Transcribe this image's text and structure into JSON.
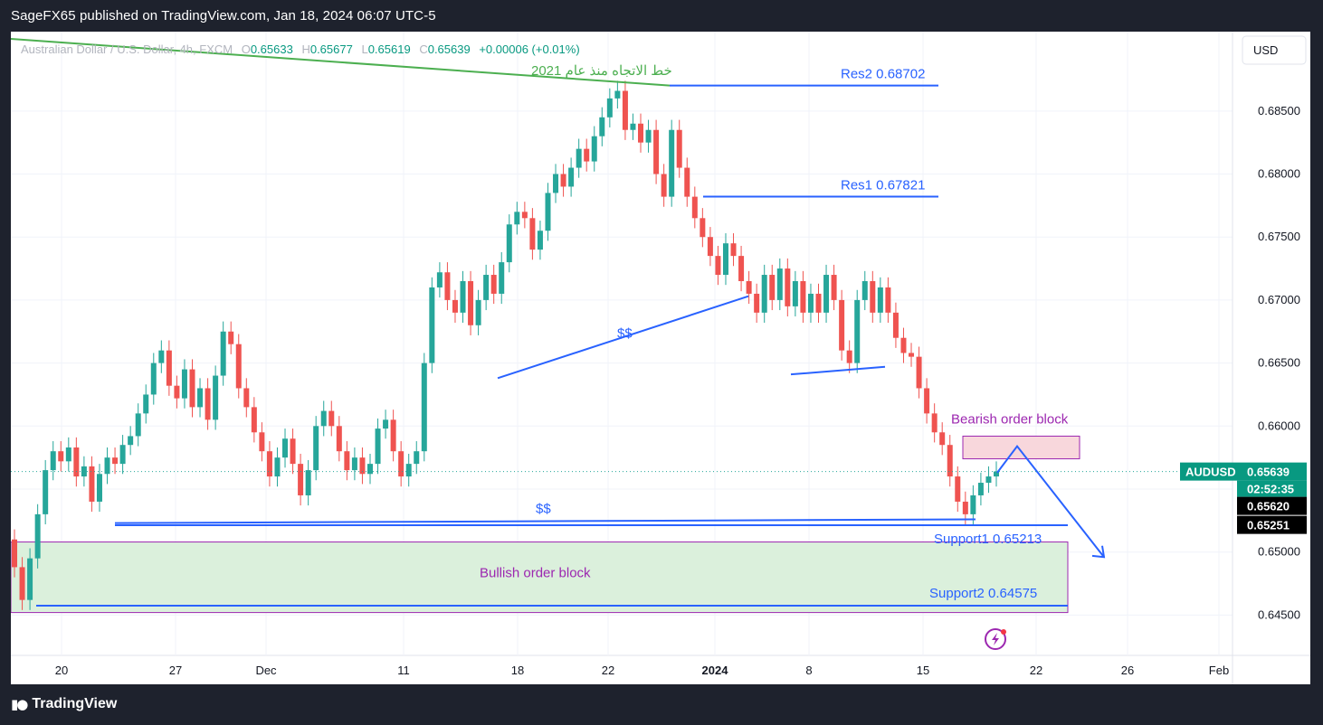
{
  "header": {
    "publisher_line": "SageFX65 published on TradingView.com, Jan 18, 2024 06:07 UTC-5"
  },
  "footer": {
    "brand": "TradingView",
    "logo_icon": "tradingview-logo-icon"
  },
  "colors": {
    "up": "#26a69a",
    "down": "#ef5350",
    "level_line": "#2962ff",
    "trendline": "#4caf50",
    "annotation_purple": "#9c27b0",
    "bearish_fill": "#f8d7dc",
    "bullish_fill": "#dbf0dc",
    "price_tag": "#089981"
  },
  "chart_data": {
    "type": "candlestick",
    "symbol_legend": {
      "name": "Australian Dollar / U.S. Dollar, 4h, FXCM",
      "open_label": "O",
      "open": "0.65633",
      "high_label": "H",
      "high": "0.65677",
      "low_label": "L",
      "low": "0.65619",
      "close_label": "C",
      "close": "0.65639",
      "change": "+0.00006 (+0.01%)"
    },
    "currency_button": "USD",
    "y_ticks": [
      "0.68500",
      "0.68000",
      "0.67500",
      "0.67000",
      "0.66500",
      "0.66000",
      "0.65500",
      "0.65000",
      "0.64500"
    ],
    "y_tick_values": [
      0.685,
      0.68,
      0.675,
      0.67,
      0.665,
      0.66,
      0.655,
      0.65,
      0.645
    ],
    "ylim": [
      0.6418,
      0.6913
    ],
    "x_ticks": [
      "20",
      "27",
      "Dec",
      "11",
      "18",
      "22",
      "2024",
      "8",
      "15",
      "22",
      "26",
      "Feb"
    ],
    "price_tags": {
      "symbol": "AUDUSD",
      "price": "0.65639",
      "countdown": "02:52:35",
      "tag2": "0.65620",
      "tag3": "0.65251"
    },
    "annotations": {
      "trendline_label": "خط الاتجاه منذ عام 2021",
      "res2": "Res2  0.68702",
      "res2_value": 0.68702,
      "res1": "Res1  0.67821",
      "res1_value": 0.67821,
      "support1": "Support1  0.65213",
      "support1_value": 0.65213,
      "support2": "Support2  0.64575",
      "support2_value": 0.64575,
      "liquidity_1": "$$",
      "liquidity_2": "$$",
      "bearish_block": "Bearish order block",
      "bullish_block": "Bullish order block"
    },
    "series_path": [
      [
        0.651,
        0.6488
      ],
      [
        0.6488,
        0.6462
      ],
      [
        0.6462,
        0.6495
      ],
      [
        0.6495,
        0.653
      ],
      [
        0.653,
        0.6565
      ],
      [
        0.6565,
        0.658
      ],
      [
        0.658,
        0.6572
      ],
      [
        0.6572,
        0.6583
      ],
      [
        0.6583,
        0.656
      ],
      [
        0.656,
        0.6568
      ],
      [
        0.6568,
        0.654
      ],
      [
        0.654,
        0.6562
      ],
      [
        0.6562,
        0.6575
      ],
      [
        0.6575,
        0.657
      ],
      [
        0.657,
        0.6585
      ],
      [
        0.6585,
        0.6592
      ],
      [
        0.6592,
        0.661
      ],
      [
        0.661,
        0.6625
      ],
      [
        0.6625,
        0.665
      ],
      [
        0.665,
        0.666
      ],
      [
        0.666,
        0.6632
      ],
      [
        0.6632,
        0.6622
      ],
      [
        0.6622,
        0.6645
      ],
      [
        0.6645,
        0.6615
      ],
      [
        0.6615,
        0.663
      ],
      [
        0.663,
        0.6605
      ],
      [
        0.6605,
        0.664
      ],
      [
        0.664,
        0.6675
      ],
      [
        0.6675,
        0.6665
      ],
      [
        0.6665,
        0.663
      ],
      [
        0.663,
        0.6615
      ],
      [
        0.6615,
        0.6595
      ],
      [
        0.6595,
        0.658
      ],
      [
        0.658,
        0.656
      ],
      [
        0.656,
        0.6575
      ],
      [
        0.6575,
        0.659
      ],
      [
        0.659,
        0.657
      ],
      [
        0.657,
        0.6545
      ],
      [
        0.6545,
        0.6565
      ],
      [
        0.6565,
        0.66
      ],
      [
        0.66,
        0.6612
      ],
      [
        0.6612,
        0.66
      ],
      [
        0.66,
        0.658
      ],
      [
        0.658,
        0.6565
      ],
      [
        0.6565,
        0.6575
      ],
      [
        0.6575,
        0.6562
      ],
      [
        0.6562,
        0.657
      ],
      [
        0.657,
        0.6598
      ],
      [
        0.6598,
        0.6605
      ],
      [
        0.6605,
        0.658
      ],
      [
        0.658,
        0.656
      ],
      [
        0.656,
        0.657
      ],
      [
        0.657,
        0.658
      ],
      [
        0.658,
        0.665
      ],
      [
        0.665,
        0.671
      ],
      [
        0.671,
        0.6722
      ],
      [
        0.6722,
        0.67
      ],
      [
        0.67,
        0.669
      ],
      [
        0.669,
        0.6715
      ],
      [
        0.6715,
        0.668
      ],
      [
        0.668,
        0.67
      ],
      [
        0.67,
        0.672
      ],
      [
        0.672,
        0.6705
      ],
      [
        0.6705,
        0.673
      ],
      [
        0.673,
        0.676
      ],
      [
        0.676,
        0.677
      ],
      [
        0.677,
        0.6765
      ],
      [
        0.6765,
        0.674
      ],
      [
        0.674,
        0.6755
      ],
      [
        0.6755,
        0.6785
      ],
      [
        0.6785,
        0.68
      ],
      [
        0.68,
        0.679
      ],
      [
        0.679,
        0.6805
      ],
      [
        0.6805,
        0.682
      ],
      [
        0.682,
        0.681
      ],
      [
        0.681,
        0.683
      ],
      [
        0.683,
        0.6845
      ],
      [
        0.6845,
        0.686
      ],
      [
        0.686,
        0.6866
      ],
      [
        0.6866,
        0.6835
      ],
      [
        0.6835,
        0.684
      ],
      [
        0.684,
        0.6825
      ],
      [
        0.6825,
        0.6835
      ],
      [
        0.6835,
        0.68
      ],
      [
        0.68,
        0.6782
      ],
      [
        0.6782,
        0.6835
      ],
      [
        0.6835,
        0.6805
      ],
      [
        0.6805,
        0.6782
      ],
      [
        0.6782,
        0.6765
      ],
      [
        0.6765,
        0.675
      ],
      [
        0.675,
        0.6735
      ],
      [
        0.6735,
        0.672
      ],
      [
        0.672,
        0.6745
      ],
      [
        0.6745,
        0.6735
      ],
      [
        0.6735,
        0.6715
      ],
      [
        0.6715,
        0.6705
      ],
      [
        0.6705,
        0.669
      ],
      [
        0.669,
        0.672
      ],
      [
        0.672,
        0.67
      ],
      [
        0.67,
        0.6725
      ],
      [
        0.6725,
        0.6695
      ],
      [
        0.6695,
        0.6715
      ],
      [
        0.6715,
        0.669
      ],
      [
        0.669,
        0.6705
      ],
      [
        0.6705,
        0.669
      ],
      [
        0.669,
        0.672
      ],
      [
        0.672,
        0.67
      ],
      [
        0.67,
        0.666
      ],
      [
        0.666,
        0.665
      ],
      [
        0.665,
        0.67
      ],
      [
        0.67,
        0.6715
      ],
      [
        0.6715,
        0.669
      ],
      [
        0.669,
        0.671
      ],
      [
        0.671,
        0.669
      ],
      [
        0.669,
        0.667
      ],
      [
        0.667,
        0.6658
      ],
      [
        0.6658,
        0.6655
      ],
      [
        0.6655,
        0.663
      ],
      [
        0.663,
        0.661
      ],
      [
        0.661,
        0.6595
      ],
      [
        0.6595,
        0.6585
      ],
      [
        0.6585,
        0.656
      ],
      [
        0.656,
        0.654
      ],
      [
        0.654,
        0.653
      ],
      [
        0.653,
        0.6545
      ],
      [
        0.6545,
        0.6555
      ],
      [
        0.6555,
        0.656
      ],
      [
        0.656,
        0.6564
      ]
    ]
  }
}
